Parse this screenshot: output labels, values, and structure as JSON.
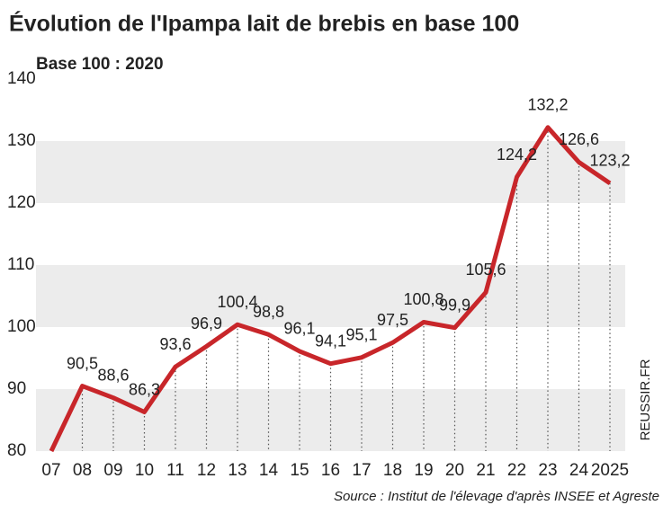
{
  "chart_data": {
    "type": "line",
    "title": "Évolution de l'Ipampa lait de brebis en base 100",
    "subtitle": "Base 100 : 2020",
    "source": "Source : Institut de l'élevage d'après INSEE et Agreste",
    "credit": "REUSSIR.FR",
    "categories": [
      "07",
      "08",
      "09",
      "10",
      "11",
      "12",
      "13",
      "14",
      "15",
      "16",
      "17",
      "18",
      "19",
      "20",
      "21",
      "22",
      "23",
      "24",
      "2025"
    ],
    "values": [
      80,
      90.5,
      88.6,
      86.3,
      93.6,
      96.9,
      100.4,
      98.8,
      96.1,
      94.1,
      95.1,
      97.5,
      100.8,
      99.9,
      105.6,
      124.2,
      132.2,
      126.6,
      123.2
    ],
    "value_labels": [
      null,
      "90,5",
      "88,6",
      "86,3",
      "93,6",
      "96,9",
      "100,4",
      "98,8",
      "96,1",
      "94,1",
      "95,1",
      "97,5",
      "100,8",
      "99,9",
      "105,6",
      "124,2",
      "132,2",
      "126,6",
      "123,2"
    ],
    "color": "#c8262a",
    "ylim": [
      80,
      140
    ],
    "yticks": [
      80,
      90,
      100,
      110,
      120,
      130,
      140
    ],
    "grid": "bands"
  }
}
